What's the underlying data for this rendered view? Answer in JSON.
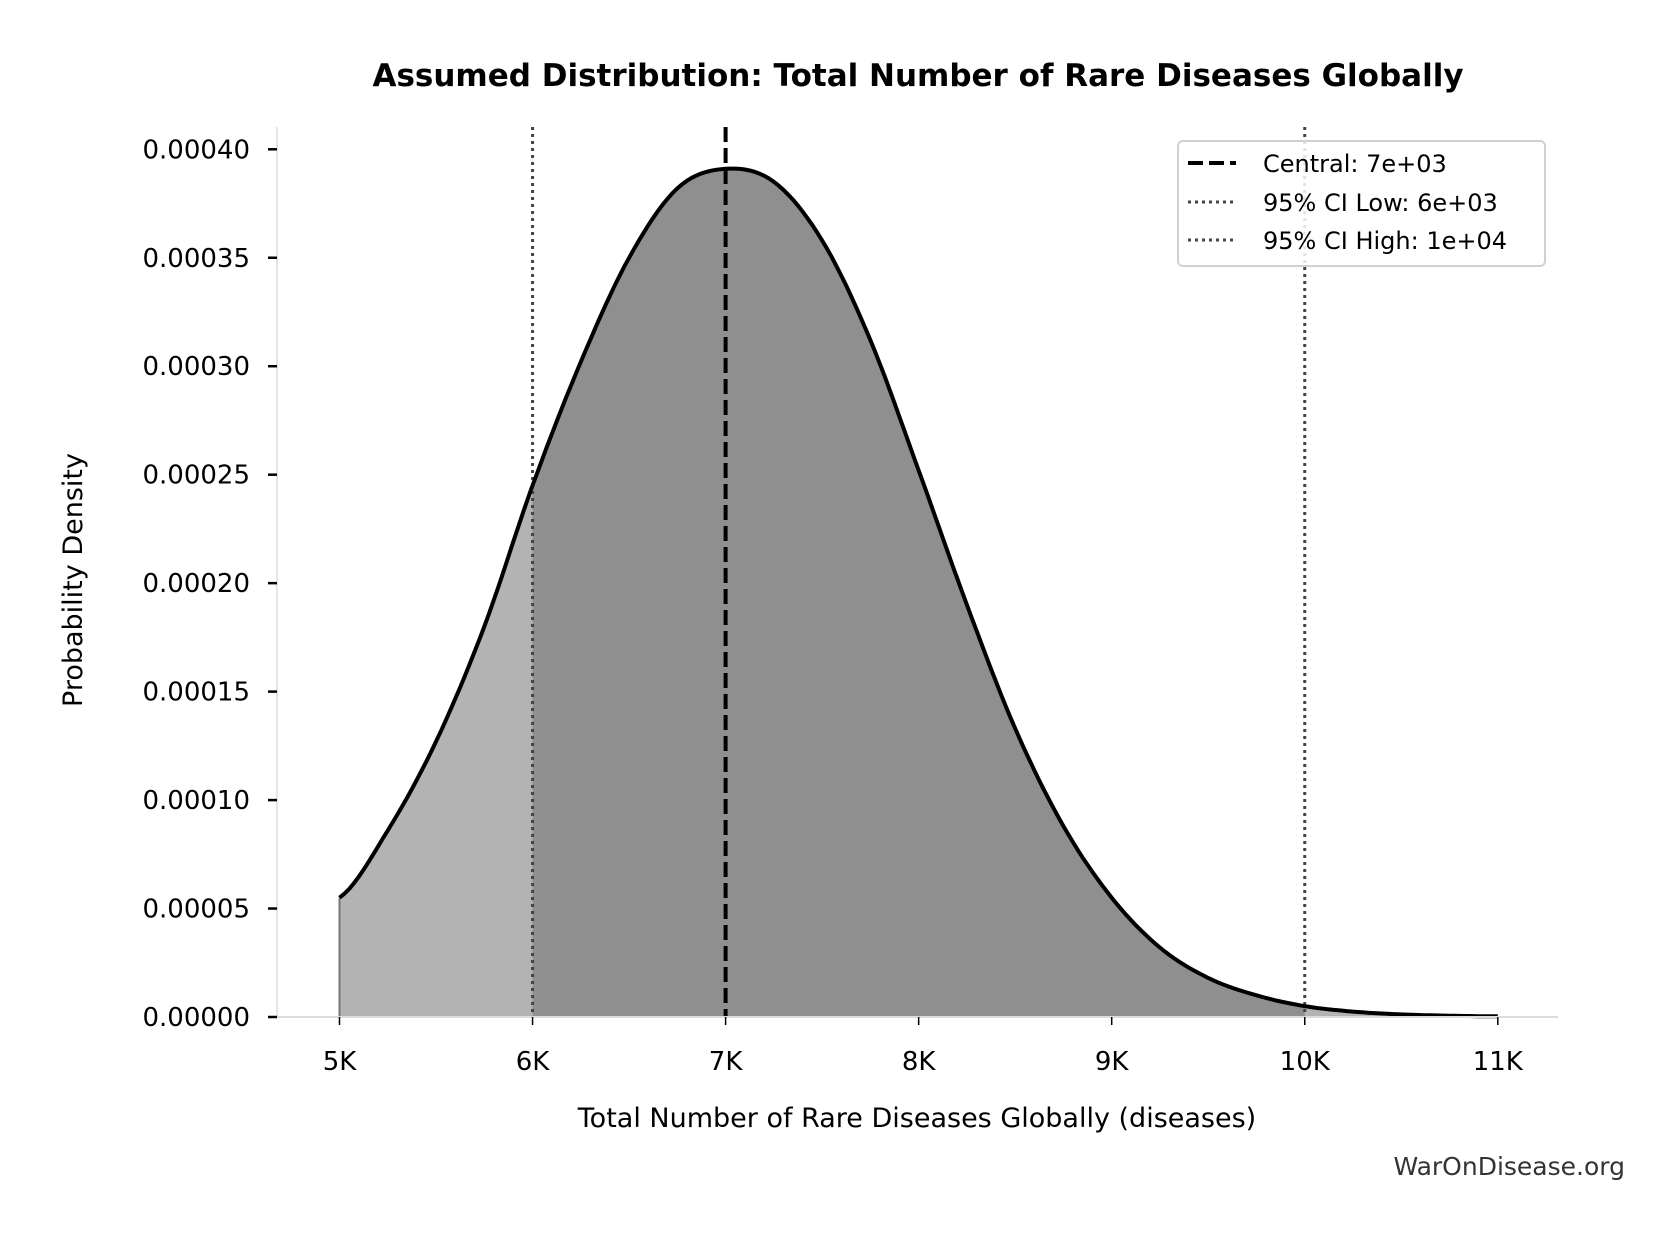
{
  "chart_data": {
    "type": "area",
    "title": "Assumed Distribution: Total Number of Rare Diseases Globally",
    "xlabel": "Total Number of Rare Diseases Globally (diseases)",
    "ylabel": "Probability Density",
    "xlim": [
      4650,
      11300
    ],
    "ylim": [
      0,
      0.00041
    ],
    "x_ticks": [
      5000,
      6000,
      7000,
      8000,
      9000,
      10000,
      11000
    ],
    "x_tick_labels": [
      "5K",
      "6K",
      "7K",
      "8K",
      "9K",
      "10K",
      "11K"
    ],
    "y_ticks": [
      0,
      5e-05,
      0.0001,
      0.00015,
      0.0002,
      0.00025,
      0.0003,
      0.00035,
      0.0004
    ],
    "y_tick_labels": [
      "0.00000",
      "0.00005",
      "0.00010",
      "0.00015",
      "0.00020",
      "0.00025",
      "0.00030",
      "0.00035",
      "0.00040"
    ],
    "grid": false,
    "x": [
      5000,
      5250,
      5500,
      5750,
      6000,
      6250,
      6500,
      6750,
      7000,
      7250,
      7500,
      7750,
      8000,
      8250,
      8500,
      8750,
      9000,
      9250,
      9500,
      9750,
      10000,
      10250,
      10500,
      10750,
      11000
    ],
    "y": [
      5.5e-05,
      8.6e-05,
      0.000127,
      0.00018,
      0.000245,
      0.000302,
      0.00035,
      0.000382,
      0.000391,
      0.000385,
      0.000358,
      0.000312,
      0.000252,
      0.00019,
      0.000133,
      8.8e-05,
      5.5e-05,
      3.2e-05,
      1.8e-05,
      1e-05,
      5e-06,
      2.5e-06,
      1.2e-06,
      6e-07,
      3e-07
    ],
    "ci_fill_range": [
      6000,
      10000
    ],
    "vlines": [
      {
        "x": 7000,
        "style": "dashed",
        "color": "#000000",
        "label": "Central: 7e+03"
      },
      {
        "x": 6000,
        "style": "dotted",
        "color": "#444444",
        "label": "95% CI Low: 6e+03"
      },
      {
        "x": 10000,
        "style": "dotted",
        "color": "#444444",
        "label": "95% CI High: 1e+04"
      }
    ],
    "legend_position": "top-right",
    "colors": {
      "curve": "#000000",
      "fill_outer": "#b3b3b3",
      "fill_ci": "#8f8f8f",
      "spine": "#dddddd"
    }
  },
  "watermark": "WarOnDisease.org"
}
